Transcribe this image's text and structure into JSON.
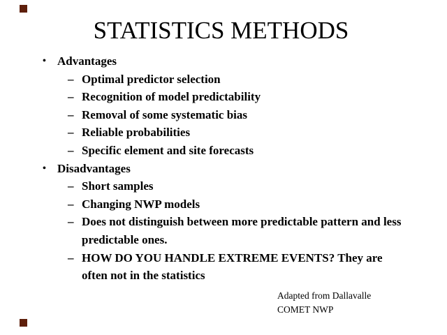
{
  "title": "STATISTICS METHODS",
  "bullets": [
    {
      "level": 1,
      "marker": "•",
      "lines": [
        "Advantages"
      ]
    },
    {
      "level": 2,
      "marker": "–",
      "lines": [
        "Optimal predictor selection"
      ]
    },
    {
      "level": 2,
      "marker": "–",
      "lines": [
        "Recognition of model predictability"
      ]
    },
    {
      "level": 2,
      "marker": "–",
      "lines": [
        "Removal of some systematic bias"
      ]
    },
    {
      "level": 2,
      "marker": "–",
      "lines": [
        "Reliable probabilities"
      ]
    },
    {
      "level": 2,
      "marker": "–",
      "lines": [
        "Specific element and site forecasts"
      ]
    },
    {
      "level": 1,
      "marker": "•",
      "lines": [
        "Disadvantages"
      ]
    },
    {
      "level": 2,
      "marker": "–",
      "lines": [
        "Short samples"
      ]
    },
    {
      "level": 2,
      "marker": "–",
      "lines": [
        "Changing NWP models"
      ]
    },
    {
      "level": 2,
      "marker": "–",
      "lines": [
        "Does not distinguish between more predictable pattern and less",
        "predictable ones."
      ]
    },
    {
      "level": 2,
      "marker": "–",
      "lines": [
        "HOW DO YOU HANDLE EXTREME EVENTS? They are",
        "often not in the statistics"
      ]
    }
  ],
  "credit": {
    "line1": "Adapted from Dallavalle",
    "line2": "COMET NWP"
  },
  "decor": {
    "square_color": "#5e1f0b"
  }
}
